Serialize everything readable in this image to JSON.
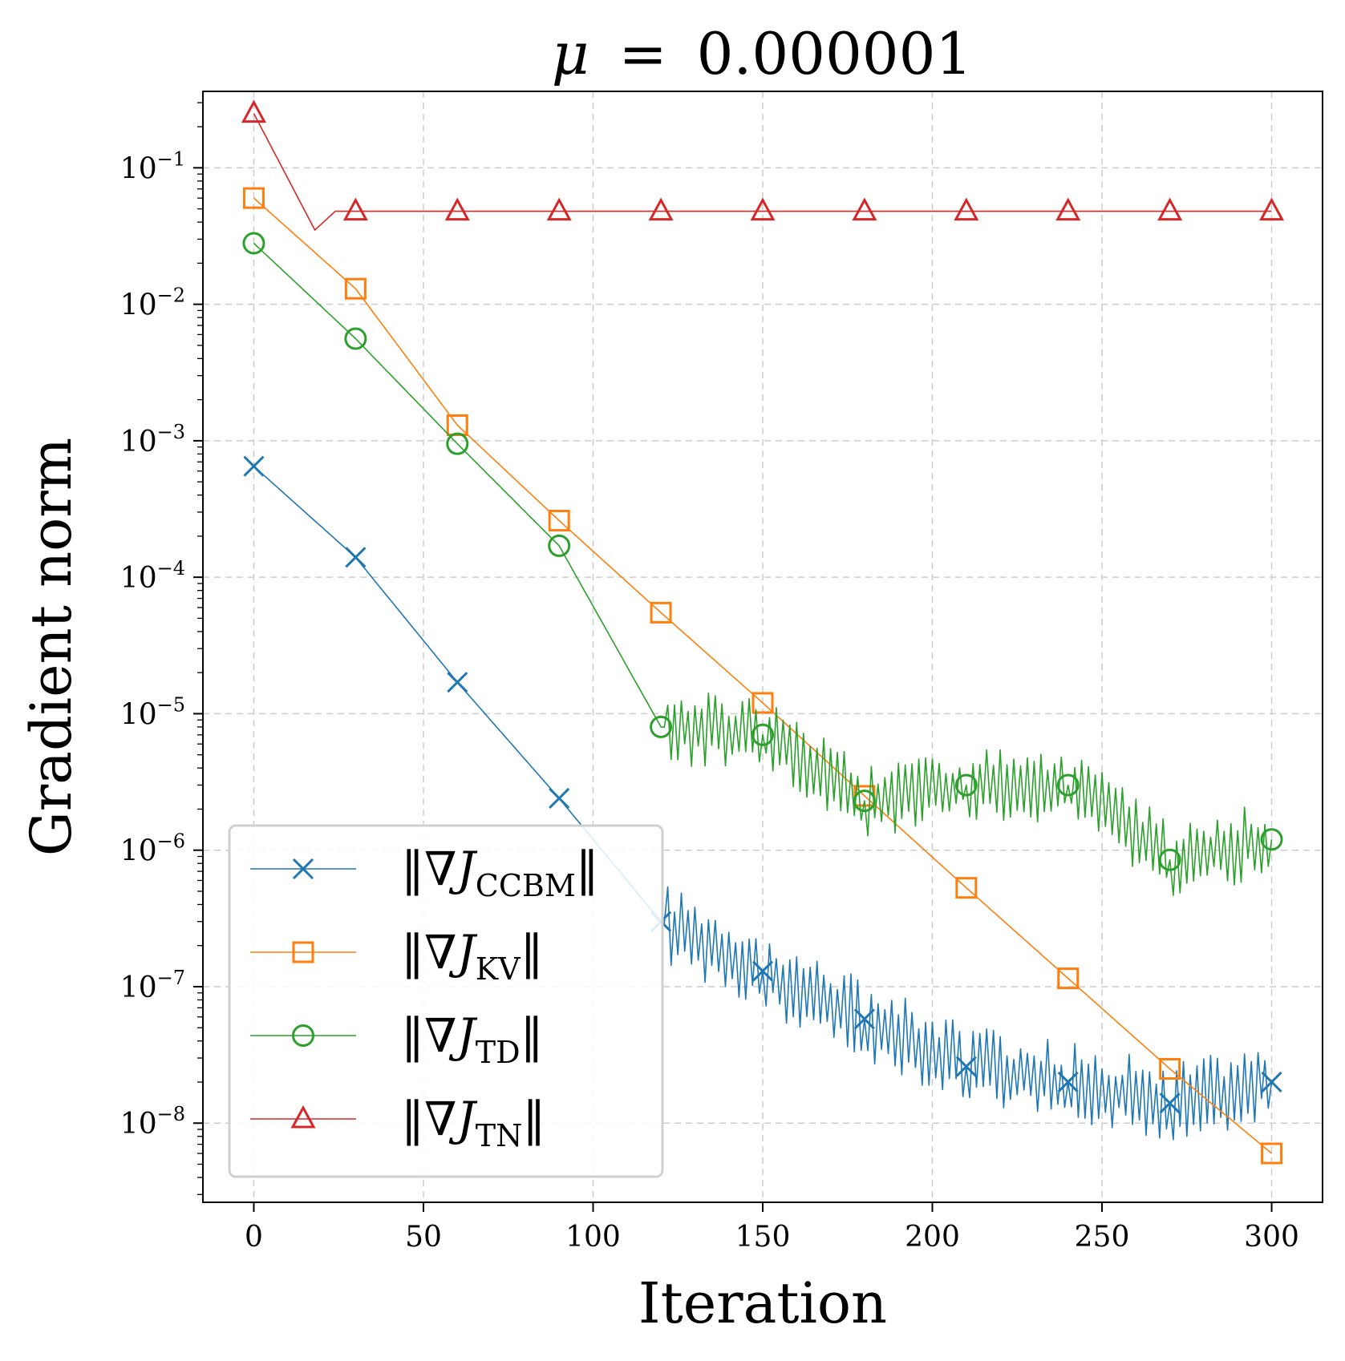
{
  "chart_data": {
    "type": "line",
    "title": "μ = 0.000001",
    "title_parts": {
      "symbol": "μ",
      "eq": "=",
      "value": "0.000001"
    },
    "xlabel": "Iteration",
    "ylabel": "Gradient norm",
    "xlim": [
      -15,
      315
    ],
    "ylim_log10": [
      -8.58,
      -0.44
    ],
    "y_scale": "log",
    "grid": true,
    "legend_position": "lower-left",
    "x_ticks": [
      0,
      50,
      100,
      150,
      200,
      250,
      300
    ],
    "x_tick_labels": [
      "0",
      "50",
      "100",
      "150",
      "200",
      "250",
      "300"
    ],
    "y_ticks_log10": [
      -8,
      -7,
      -6,
      -5,
      -4,
      -3,
      -2,
      -1
    ],
    "y_tick_base": "10",
    "y_tick_exponents": [
      "−8",
      "−7",
      "−6",
      "−5",
      "−4",
      "−3",
      "−2",
      "−1"
    ],
    "series": [
      {
        "name": "‖∇J_CCBM‖",
        "legend_prefix": "‖∇J",
        "legend_sub": "CCBM",
        "legend_suffix": "‖",
        "color": "#1f77b4",
        "marker": "x",
        "x": [
          0,
          30,
          60,
          90,
          120,
          150,
          180,
          210,
          240,
          270,
          300
        ],
        "values": [
          0.00065,
          0.00014,
          1.7e-05,
          2.4e-06,
          3e-07,
          1.3e-07,
          5.8e-08,
          2.6e-08,
          2e-08,
          1.4e-08,
          2e-08
        ],
        "noise_from": 122,
        "noise_amplitude_log10": 0.3
      },
      {
        "name": "‖∇J_KV‖",
        "legend_prefix": "‖∇J",
        "legend_sub": "KV",
        "legend_suffix": "‖",
        "color": "#ff7f0e",
        "marker": "s",
        "x": [
          0,
          30,
          60,
          90,
          120,
          150,
          180,
          210,
          240,
          270,
          300
        ],
        "values": [
          0.06,
          0.013,
          0.0013,
          0.00026,
          5.5e-05,
          1.2e-05,
          2.5e-06,
          5.3e-07,
          1.15e-07,
          2.5e-08,
          6e-09
        ],
        "noise_from": null,
        "noise_amplitude_log10": 0
      },
      {
        "name": "‖∇J_TD‖",
        "legend_prefix": "‖∇J",
        "legend_sub": "TD",
        "legend_suffix": "‖",
        "color": "#2ca02c",
        "marker": "o",
        "x": [
          0,
          30,
          60,
          90,
          120,
          150,
          180,
          210,
          240,
          270,
          300
        ],
        "values": [
          0.028,
          0.0056,
          0.00095,
          0.00017,
          8e-06,
          7e-06,
          2.3e-06,
          3e-06,
          3e-06,
          8.5e-07,
          1.2e-06
        ],
        "noise_from": 122,
        "noise_amplitude_log10": 0.28
      },
      {
        "name": "‖∇J_TN‖",
        "legend_prefix": "‖∇J",
        "legend_sub": "TN",
        "legend_suffix": "‖",
        "color": "#d62728",
        "marker": "^",
        "x": [
          0,
          30,
          60,
          90,
          120,
          150,
          180,
          210,
          240,
          270,
          300
        ],
        "values": [
          0.25,
          0.048,
          0.048,
          0.048,
          0.048,
          0.048,
          0.048,
          0.048,
          0.048,
          0.048,
          0.048
        ],
        "noise_from": null,
        "noise_amplitude_log10": 0
      }
    ]
  }
}
